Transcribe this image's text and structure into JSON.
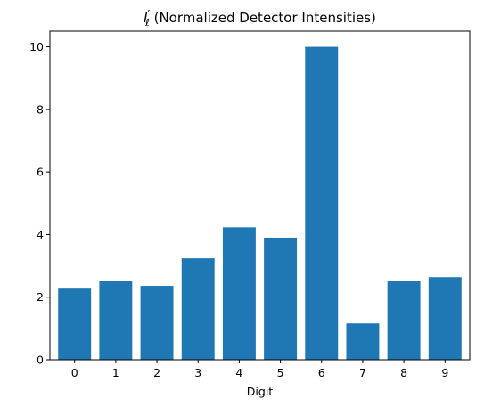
{
  "chart_data": {
    "type": "bar",
    "title_main": "I",
    "title_prime": "′",
    "title_sub": "ℓ",
    "title_rest": " (Normalized Detector Intensities)",
    "xlabel": "Digit",
    "ylabel": "",
    "categories": [
      "0",
      "1",
      "2",
      "3",
      "4",
      "5",
      "6",
      "7",
      "8",
      "9"
    ],
    "values": [
      2.3,
      2.52,
      2.36,
      3.24,
      4.23,
      3.9,
      10.0,
      1.16,
      2.53,
      2.64
    ],
    "ylim": [
      0,
      10.5
    ],
    "yticks": [
      "0",
      "2",
      "4",
      "6",
      "8",
      "10"
    ],
    "bar_color": "#1f77b4",
    "grid": false,
    "legend": false
  }
}
